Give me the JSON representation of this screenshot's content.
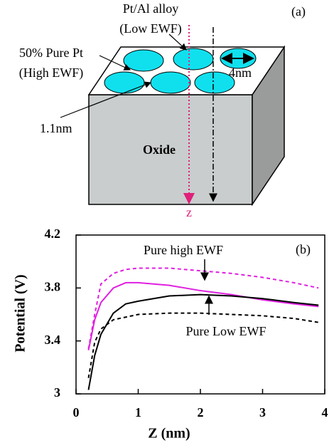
{
  "diagram": {
    "labels": {
      "alloy": "Pt/Al alloy",
      "alloy_ewf": "(Low EWF)",
      "panel": "(a)",
      "pure": "50% Pure Pt",
      "pure_ewf": "(High EWF)",
      "diameter": "4nm",
      "spacing": "1.1nm",
      "oxide": "Oxide",
      "axis": "z"
    }
  },
  "chart_data": {
    "type": "line",
    "xlabel": "Z (nm)",
    "ylabel": "Potential (V)",
    "annotations": [
      "(b)",
      "Pure high EWF",
      "Pure Low EWF"
    ],
    "x": [
      0.2,
      0.3,
      0.4,
      0.6,
      0.8,
      1,
      1.5,
      2,
      2.5,
      3,
      3.5,
      3.9
    ],
    "series": [
      {
        "color": "#e020e0",
        "dash": true,
        "values": [
          3.34,
          3.6,
          3.83,
          3.91,
          3.94,
          3.95,
          3.95,
          3.93,
          3.91,
          3.88,
          3.84,
          3.8
        ]
      },
      {
        "color": "#e020e0",
        "dash": false,
        "values": [
          3.33,
          3.56,
          3.69,
          3.8,
          3.84,
          3.84,
          3.82,
          3.78,
          3.75,
          3.71,
          3.68,
          3.66
        ]
      },
      {
        "color": "#000000",
        "dash": false,
        "values": [
          3.03,
          3.29,
          3.45,
          3.61,
          3.68,
          3.7,
          3.74,
          3.75,
          3.74,
          3.72,
          3.69,
          3.67
        ]
      },
      {
        "color": "#000000",
        "dash": true,
        "values": [
          3.12,
          3.39,
          3.49,
          3.56,
          3.58,
          3.6,
          3.61,
          3.61,
          3.6,
          3.59,
          3.57,
          3.54
        ]
      }
    ],
    "xlim": [
      0,
      4
    ],
    "xticks": [
      0,
      1,
      2,
      3,
      4
    ],
    "ylim": [
      3,
      4.2
    ],
    "yticks": [
      3,
      3.4,
      3.8,
      4.2
    ]
  }
}
